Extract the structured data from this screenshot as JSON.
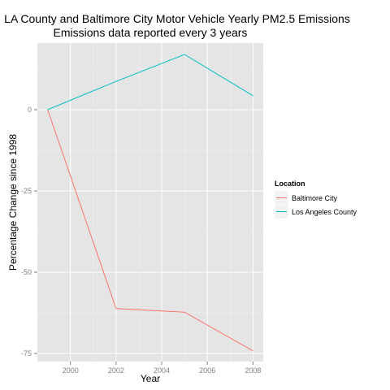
{
  "chart_data": {
    "type": "line",
    "title": "LA County and Baltimore City Motor Vehicle Yearly PM2.5 Emissions",
    "subtitle": "Emissions data reported every 3 years",
    "xlabel": "Year",
    "ylabel": "Percentage Change since 1998",
    "x": [
      1999,
      2002,
      2005,
      2008
    ],
    "xticks": [
      2000,
      2002,
      2004,
      2006,
      2008
    ],
    "xlim": [
      1998.55,
      2008.45
    ],
    "yticks": [
      0,
      -25,
      -50,
      -75
    ],
    "ylim": [
      -77.5,
      20.5
    ],
    "grid": true,
    "legend": {
      "title": "Location",
      "position": "right"
    },
    "series": [
      {
        "name": "Baltimore City",
        "color": "#F8766D",
        "values": [
          0,
          -61.2,
          -62.3,
          -74.2
        ]
      },
      {
        "name": "Los Angeles County",
        "color": "#00BFC4",
        "values": [
          0,
          8.7,
          17.0,
          4.3
        ]
      }
    ]
  }
}
